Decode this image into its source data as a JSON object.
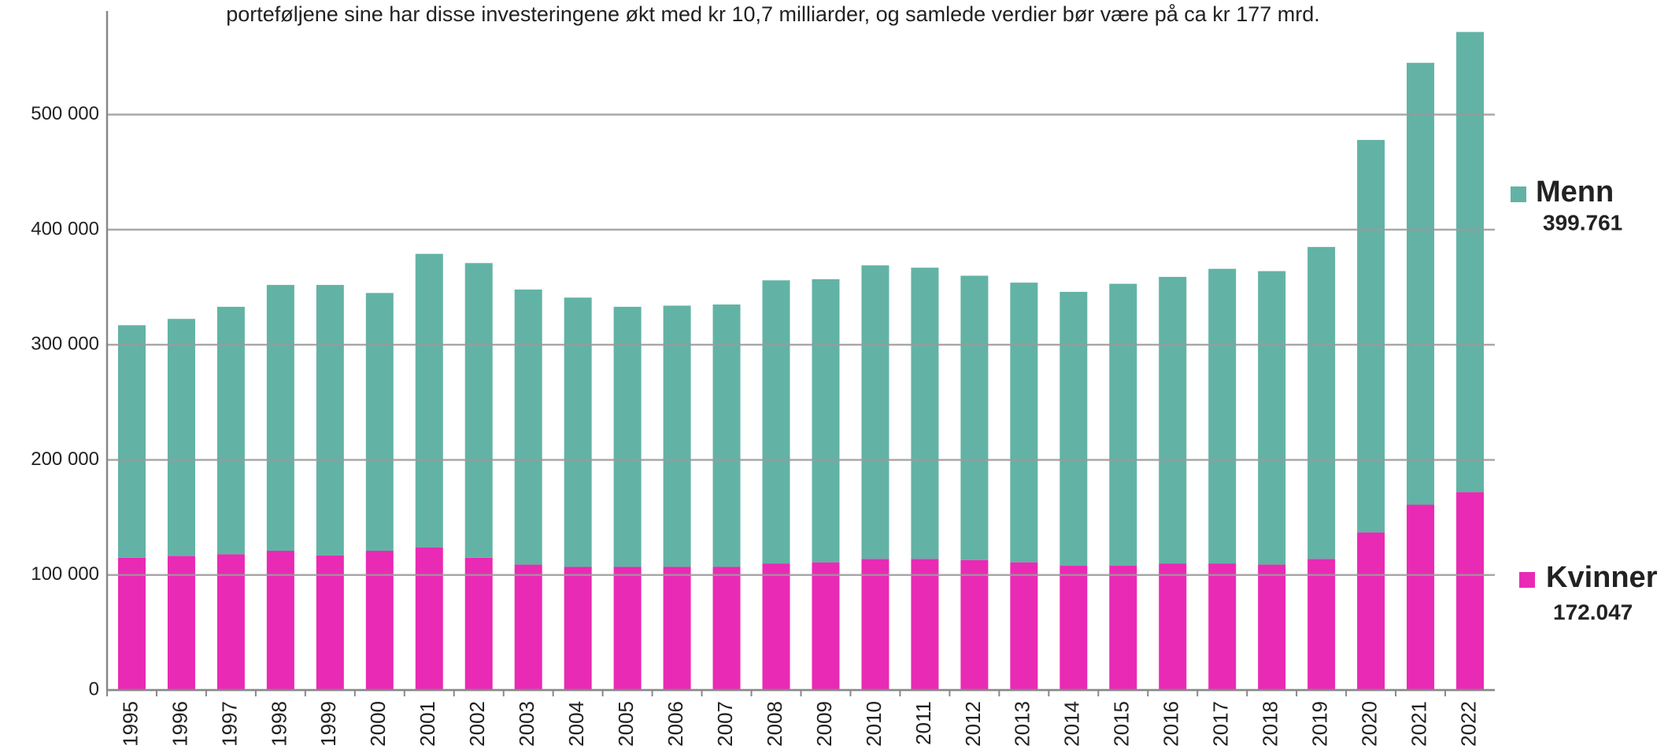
{
  "chart_data": {
    "type": "stacked_bar",
    "title": "porteføljene sine har disse investeringene økt med kr 10,7 milliarder, og samlede verdier bør være på ca kr 177 mrd.",
    "categories": [
      "1995",
      "1996",
      "1997",
      "1998",
      "1999",
      "2000",
      "2001",
      "2002",
      "2003",
      "2004",
      "2005",
      "2006",
      "2007",
      "2008",
      "2009",
      "2010",
      "2011",
      "2012",
      "2013",
      "2014",
      "2015",
      "2016",
      "2017",
      "2018",
      "2019",
      "2020",
      "2021",
      "2022"
    ],
    "series": [
      {
        "name": "Kvinner",
        "color": "#e92ab4",
        "values": [
          115000,
          116500,
          118000,
          121000,
          117000,
          121000,
          124000,
          115000,
          109000,
          107000,
          107000,
          107000,
          107000,
          110000,
          111000,
          114000,
          114000,
          113000,
          111000,
          108000,
          108000,
          110000,
          110000,
          109000,
          114000,
          137000,
          161000,
          172047
        ],
        "value_labels": [
          null,
          null,
          null,
          null,
          null,
          null,
          null,
          null,
          null,
          null,
          null,
          null,
          null,
          null,
          null,
          null,
          null,
          null,
          null,
          null,
          null,
          null,
          null,
          null,
          null,
          null,
          null,
          "172.047"
        ]
      },
      {
        "name": "Menn",
        "color": "#62b3a5",
        "values": [
          202000,
          206000,
          215000,
          231000,
          235000,
          224000,
          255000,
          256000,
          239000,
          234000,
          226000,
          227000,
          228000,
          246000,
          246000,
          255000,
          253000,
          247000,
          243000,
          238000,
          245000,
          249000,
          256000,
          255000,
          271000,
          341000,
          384000,
          399761
        ],
        "value_labels": [
          null,
          null,
          null,
          null,
          null,
          null,
          null,
          null,
          null,
          null,
          null,
          null,
          null,
          null,
          null,
          null,
          null,
          null,
          null,
          null,
          null,
          null,
          null,
          null,
          null,
          null,
          null,
          "399.761"
        ]
      }
    ],
    "ylim": [
      0,
      590000
    ],
    "yticks": [
      0,
      {
        "value": 100000,
        "label": "100 000"
      },
      {
        "value": 200000,
        "label": "200 000"
      },
      {
        "value": 300000,
        "label": "300 000"
      },
      {
        "value": 400000,
        "label": "400 000"
      },
      {
        "value": 500000,
        "label": "500 000"
      }
    ],
    "grid": true
  }
}
